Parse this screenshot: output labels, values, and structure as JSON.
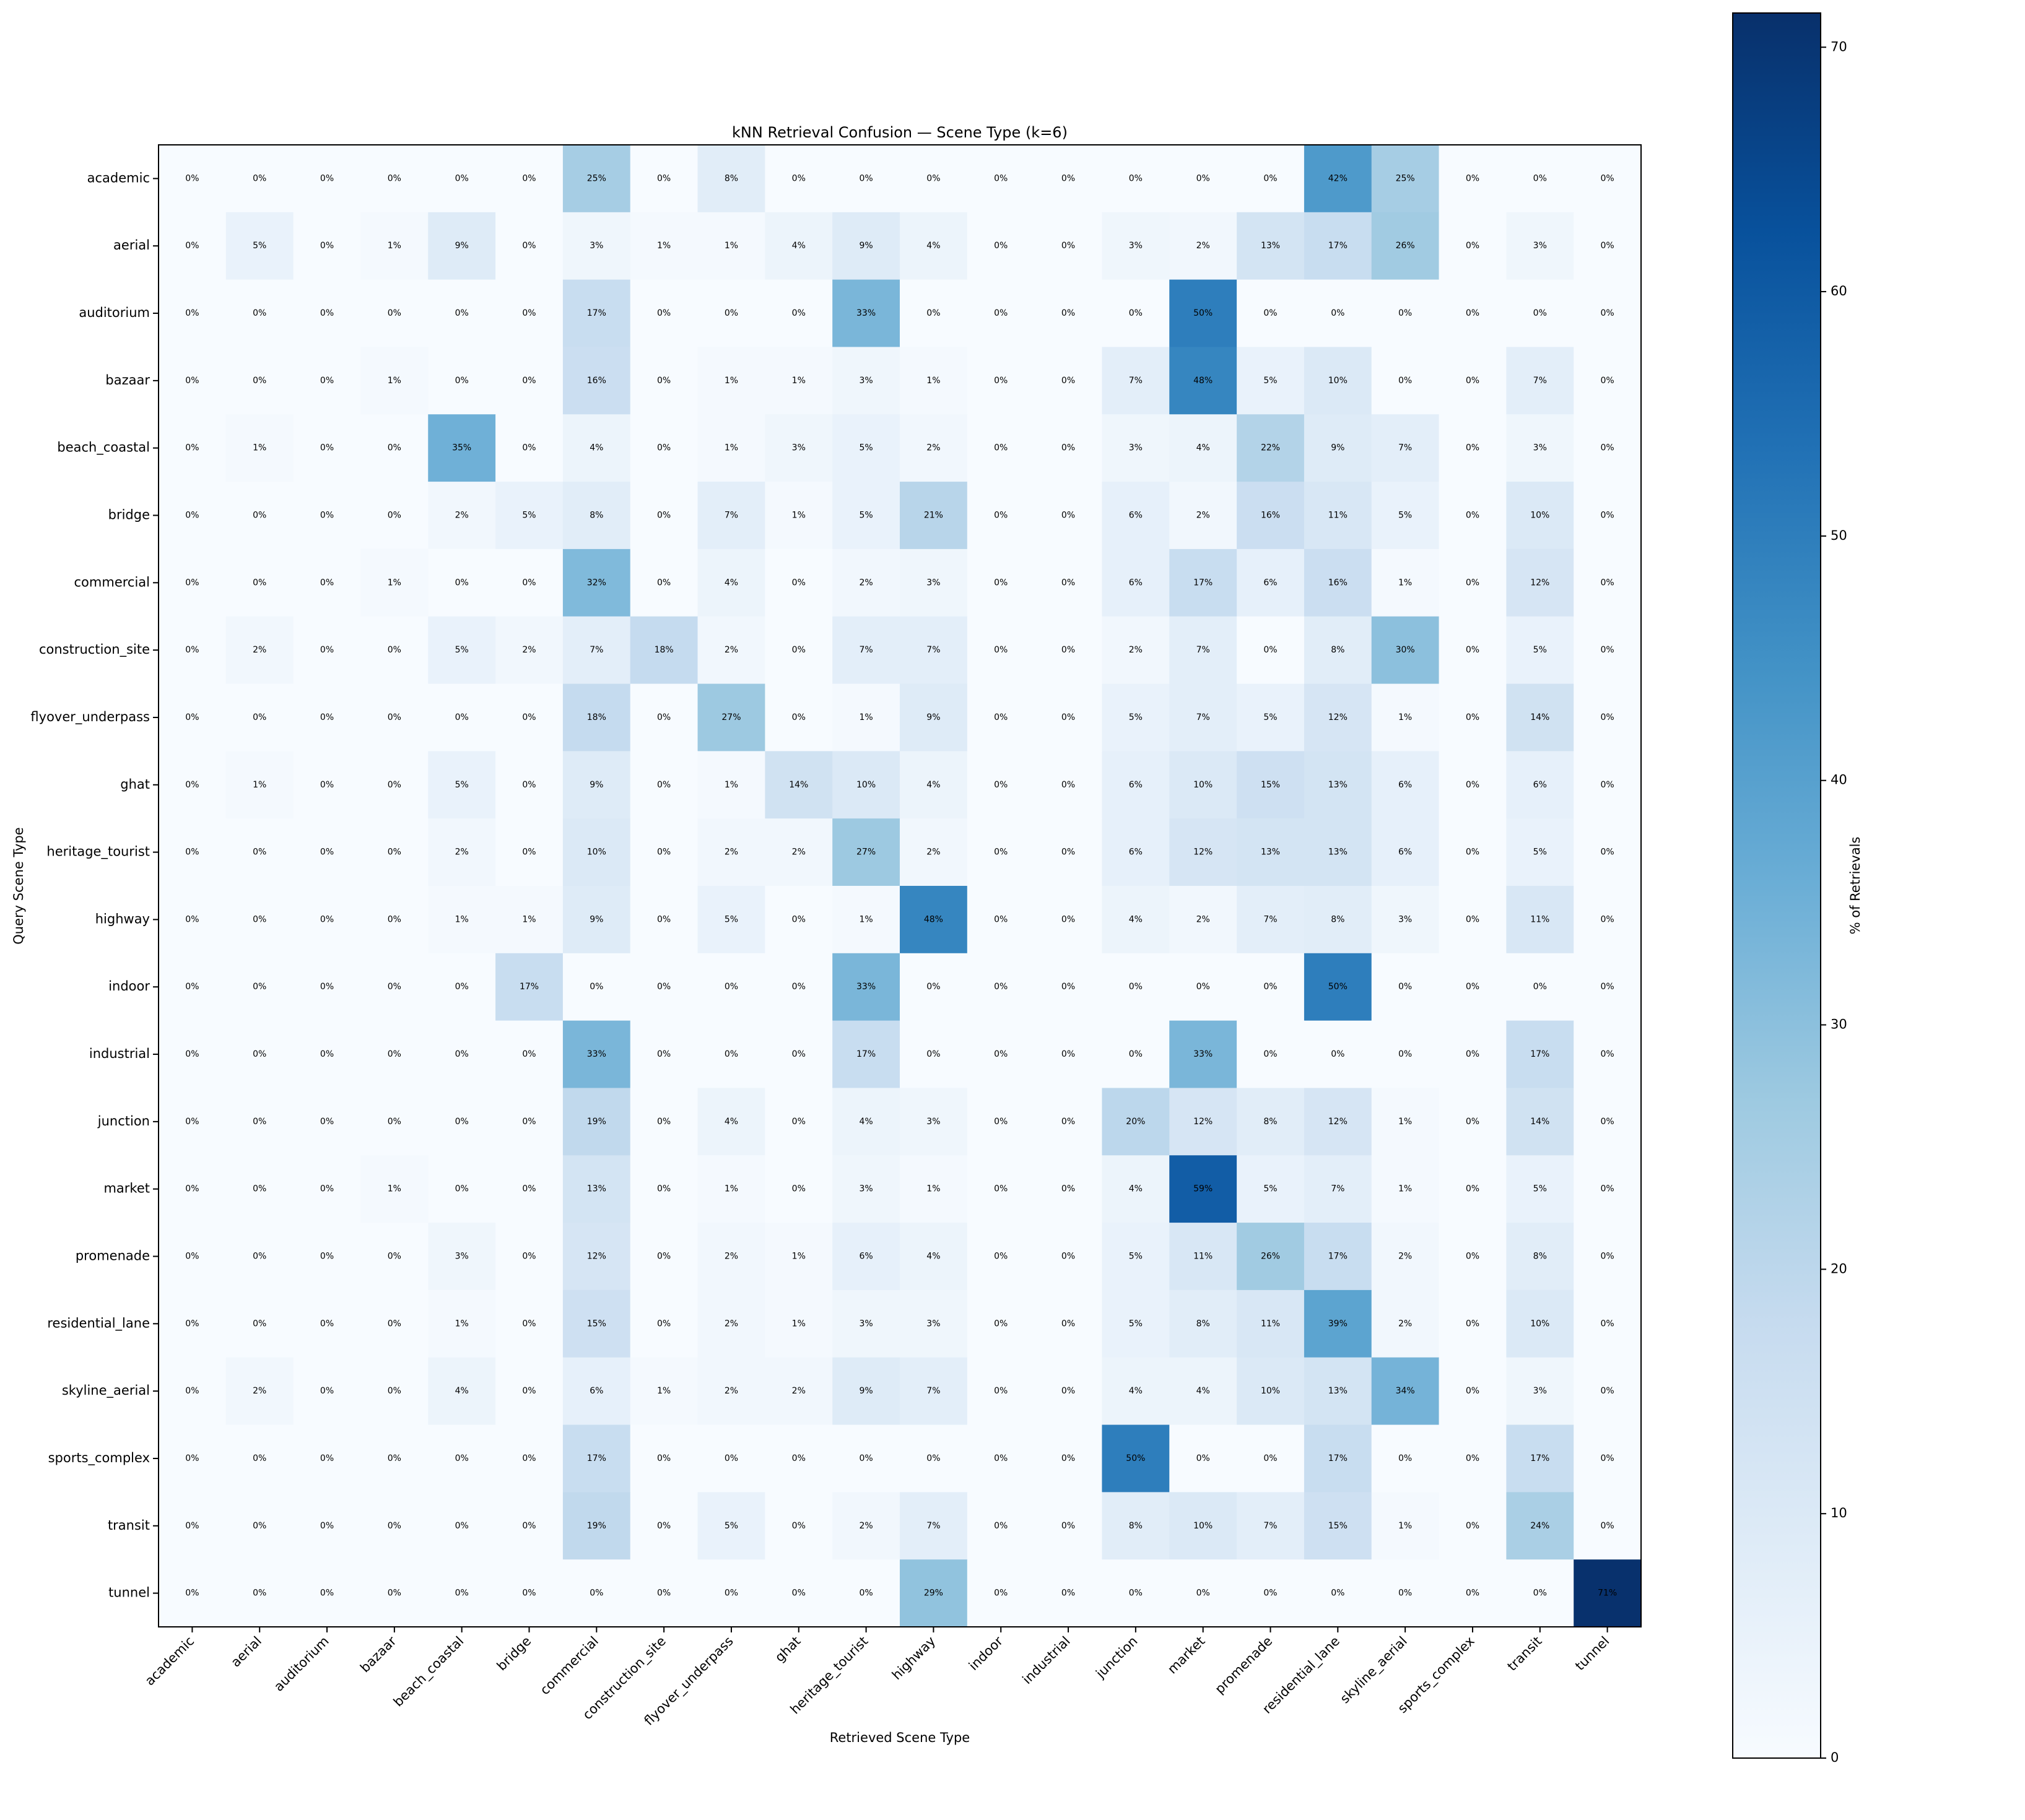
{
  "chart_data": {
    "type": "heatmap",
    "title": "kNN Retrieval Confusion — Scene Type (k=6)",
    "xlabel": "Retrieved Scene Type",
    "ylabel": "Query Scene Type",
    "categories": [
      "academic",
      "aerial",
      "auditorium",
      "bazaar",
      "beach_coastal",
      "bridge",
      "commercial",
      "construction_site",
      "flyover_underpass",
      "ghat",
      "heritage_tourist",
      "highway",
      "indoor",
      "industrial",
      "junction",
      "market",
      "promenade",
      "residential_lane",
      "skyline_aerial",
      "sports_complex",
      "transit",
      "tunnel"
    ],
    "values": [
      [
        0,
        0,
        0,
        0,
        0,
        0,
        25,
        0,
        8,
        0,
        0,
        0,
        0,
        0,
        0,
        0,
        0,
        42,
        25,
        0,
        0,
        0
      ],
      [
        0,
        5,
        0,
        1,
        9,
        0,
        3,
        1,
        1,
        4,
        9,
        4,
        0,
        0,
        3,
        2,
        13,
        17,
        26,
        0,
        3,
        0
      ],
      [
        0,
        0,
        0,
        0,
        0,
        0,
        17,
        0,
        0,
        0,
        33,
        0,
        0,
        0,
        0,
        50,
        0,
        0,
        0,
        0,
        0,
        0
      ],
      [
        0,
        0,
        0,
        1,
        0,
        0,
        16,
        0,
        1,
        1,
        3,
        1,
        0,
        0,
        7,
        48,
        5,
        10,
        0,
        0,
        7,
        0
      ],
      [
        0,
        1,
        0,
        0,
        35,
        0,
        4,
        0,
        1,
        3,
        5,
        2,
        0,
        0,
        3,
        4,
        22,
        9,
        7,
        0,
        3,
        0
      ],
      [
        0,
        0,
        0,
        0,
        2,
        5,
        8,
        0,
        7,
        1,
        5,
        21,
        0,
        0,
        6,
        2,
        16,
        11,
        5,
        0,
        10,
        0
      ],
      [
        0,
        0,
        0,
        1,
        0,
        0,
        32,
        0,
        4,
        0,
        2,
        3,
        0,
        0,
        6,
        17,
        6,
        16,
        1,
        0,
        12,
        0
      ],
      [
        0,
        2,
        0,
        0,
        5,
        2,
        7,
        18,
        2,
        0,
        7,
        7,
        0,
        0,
        2,
        7,
        0,
        8,
        30,
        0,
        5,
        0
      ],
      [
        0,
        0,
        0,
        0,
        0,
        0,
        18,
        0,
        27,
        0,
        1,
        9,
        0,
        0,
        5,
        7,
        5,
        12,
        1,
        0,
        14,
        0
      ],
      [
        0,
        1,
        0,
        0,
        5,
        0,
        9,
        0,
        1,
        14,
        10,
        4,
        0,
        0,
        6,
        10,
        15,
        13,
        6,
        0,
        6,
        0
      ],
      [
        0,
        0,
        0,
        0,
        2,
        0,
        10,
        0,
        2,
        2,
        27,
        2,
        0,
        0,
        6,
        12,
        13,
        13,
        6,
        0,
        5,
        0
      ],
      [
        0,
        0,
        0,
        0,
        1,
        1,
        9,
        0,
        5,
        0,
        1,
        48,
        0,
        0,
        4,
        2,
        7,
        8,
        3,
        0,
        11,
        0
      ],
      [
        0,
        0,
        0,
        0,
        0,
        17,
        0,
        0,
        0,
        0,
        33,
        0,
        0,
        0,
        0,
        0,
        0,
        50,
        0,
        0,
        0,
        0
      ],
      [
        0,
        0,
        0,
        0,
        0,
        0,
        33,
        0,
        0,
        0,
        17,
        0,
        0,
        0,
        0,
        33,
        0,
        0,
        0,
        0,
        17,
        0
      ],
      [
        0,
        0,
        0,
        0,
        0,
        0,
        19,
        0,
        4,
        0,
        4,
        3,
        0,
        0,
        20,
        12,
        8,
        12,
        1,
        0,
        14,
        0
      ],
      [
        0,
        0,
        0,
        1,
        0,
        0,
        13,
        0,
        1,
        0,
        3,
        1,
        0,
        0,
        4,
        59,
        5,
        7,
        1,
        0,
        5,
        0
      ],
      [
        0,
        0,
        0,
        0,
        3,
        0,
        12,
        0,
        2,
        1,
        6,
        4,
        0,
        0,
        5,
        11,
        26,
        17,
        2,
        0,
        8,
        0
      ],
      [
        0,
        0,
        0,
        0,
        1,
        0,
        15,
        0,
        2,
        1,
        3,
        3,
        0,
        0,
        5,
        8,
        11,
        39,
        2,
        0,
        10,
        0
      ],
      [
        0,
        2,
        0,
        0,
        4,
        0,
        6,
        1,
        2,
        2,
        9,
        7,
        0,
        0,
        4,
        4,
        10,
        13,
        34,
        0,
        3,
        0
      ],
      [
        0,
        0,
        0,
        0,
        0,
        0,
        17,
        0,
        0,
        0,
        0,
        0,
        0,
        0,
        50,
        0,
        0,
        17,
        0,
        0,
        17,
        0
      ],
      [
        0,
        0,
        0,
        0,
        0,
        0,
        19,
        0,
        5,
        0,
        2,
        7,
        0,
        0,
        8,
        10,
        7,
        15,
        1,
        0,
        24,
        0
      ],
      [
        0,
        0,
        0,
        0,
        0,
        0,
        0,
        0,
        0,
        0,
        0,
        29,
        0,
        0,
        0,
        0,
        0,
        0,
        0,
        0,
        0,
        71
      ]
    ],
    "value_labels": [
      [
        "0%",
        "0%",
        "0%",
        "0%",
        "0%",
        "0%",
        "25%",
        "0%",
        "8%",
        "0%",
        "0%",
        "0%",
        "0%",
        "0%",
        "0%",
        "0%",
        "0%",
        "42%",
        "25%",
        "0%",
        "0%",
        "0%"
      ],
      [
        "0%",
        "5%",
        "0%",
        "1%",
        "9%",
        "0%",
        "3%",
        "1%",
        "1%",
        "4%",
        "9%",
        "4%",
        "0%",
        "0%",
        "3%",
        "2%",
        "13%",
        "17%",
        "26%",
        "0%",
        "3%",
        "0%"
      ],
      [
        "0%",
        "0%",
        "0%",
        "0%",
        "0%",
        "0%",
        "17%",
        "0%",
        "0%",
        "0%",
        "33%",
        "0%",
        "0%",
        "0%",
        "0%",
        "50%",
        "0%",
        "0%",
        "0%",
        "0%",
        "0%",
        "0%"
      ],
      [
        "0%",
        "0%",
        "0%",
        "1%",
        "0%",
        "0%",
        "16%",
        "0%",
        "1%",
        "1%",
        "3%",
        "1%",
        "0%",
        "0%",
        "7%",
        "48%",
        "5%",
        "10%",
        "0%",
        "0%",
        "7%",
        "0%"
      ],
      [
        "0%",
        "1%",
        "0%",
        "0%",
        "35%",
        "0%",
        "4%",
        "0%",
        "1%",
        "3%",
        "5%",
        "2%",
        "0%",
        "0%",
        "3%",
        "4%",
        "22%",
        "9%",
        "7%",
        "0%",
        "3%",
        "0%"
      ],
      [
        "0%",
        "0%",
        "0%",
        "0%",
        "2%",
        "5%",
        "8%",
        "0%",
        "7%",
        "1%",
        "5%",
        "21%",
        "0%",
        "0%",
        "6%",
        "2%",
        "16%",
        "11%",
        "5%",
        "0%",
        "10%",
        "0%"
      ],
      [
        "0%",
        "0%",
        "0%",
        "1%",
        "0%",
        "0%",
        "32%",
        "0%",
        "4%",
        "0%",
        "2%",
        "3%",
        "0%",
        "0%",
        "6%",
        "17%",
        "6%",
        "16%",
        "1%",
        "0%",
        "12%",
        "0%"
      ],
      [
        "0%",
        "2%",
        "0%",
        "0%",
        "5%",
        "2%",
        "7%",
        "18%",
        "2%",
        "0%",
        "7%",
        "7%",
        "0%",
        "0%",
        "2%",
        "7%",
        "0%",
        "8%",
        "30%",
        "0%",
        "5%",
        "0%"
      ],
      [
        "0%",
        "0%",
        "0%",
        "0%",
        "0%",
        "0%",
        "18%",
        "0%",
        "27%",
        "0%",
        "1%",
        "9%",
        "0%",
        "0%",
        "5%",
        "7%",
        "5%",
        "12%",
        "1%",
        "0%",
        "14%",
        "0%"
      ],
      [
        "0%",
        "1%",
        "0%",
        "0%",
        "5%",
        "0%",
        "9%",
        "0%",
        "1%",
        "14%",
        "10%",
        "4%",
        "0%",
        "0%",
        "6%",
        "10%",
        "15%",
        "13%",
        "6%",
        "0%",
        "6%",
        "0%"
      ],
      [
        "0%",
        "0%",
        "0%",
        "0%",
        "2%",
        "0%",
        "10%",
        "0%",
        "2%",
        "2%",
        "27%",
        "2%",
        "0%",
        "0%",
        "6%",
        "12%",
        "13%",
        "13%",
        "6%",
        "0%",
        "5%",
        "0%"
      ],
      [
        "0%",
        "0%",
        "0%",
        "0%",
        "1%",
        "1%",
        "9%",
        "0%",
        "5%",
        "0%",
        "1%",
        "48%",
        "0%",
        "0%",
        "4%",
        "2%",
        "7%",
        "8%",
        "3%",
        "0%",
        "11%",
        "0%"
      ],
      [
        "0%",
        "0%",
        "0%",
        "0%",
        "0%",
        "17%",
        "0%",
        "0%",
        "0%",
        "0%",
        "33%",
        "0%",
        "0%",
        "0%",
        "0%",
        "0%",
        "0%",
        "50%",
        "0%",
        "0%",
        "0%",
        "0%"
      ],
      [
        "0%",
        "0%",
        "0%",
        "0%",
        "0%",
        "0%",
        "33%",
        "0%",
        "0%",
        "0%",
        "17%",
        "0%",
        "0%",
        "0%",
        "0%",
        "33%",
        "0%",
        "0%",
        "0%",
        "0%",
        "17%",
        "0%"
      ],
      [
        "0%",
        "0%",
        "0%",
        "0%",
        "0%",
        "0%",
        "19%",
        "0%",
        "4%",
        "0%",
        "4%",
        "3%",
        "0%",
        "0%",
        "20%",
        "12%",
        "8%",
        "12%",
        "1%",
        "0%",
        "14%",
        "0%"
      ],
      [
        "0%",
        "0%",
        "0%",
        "1%",
        "0%",
        "0%",
        "13%",
        "0%",
        "1%",
        "0%",
        "3%",
        "1%",
        "0%",
        "0%",
        "4%",
        "59%",
        "5%",
        "7%",
        "1%",
        "0%",
        "5%",
        "0%"
      ],
      [
        "0%",
        "0%",
        "0%",
        "0%",
        "3%",
        "0%",
        "12%",
        "0%",
        "2%",
        "1%",
        "6%",
        "4%",
        "0%",
        "0%",
        "5%",
        "11%",
        "26%",
        "17%",
        "2%",
        "0%",
        "8%",
        "0%"
      ],
      [
        "0%",
        "0%",
        "0%",
        "0%",
        "1%",
        "0%",
        "15%",
        "0%",
        "2%",
        "1%",
        "3%",
        "3%",
        "0%",
        "0%",
        "5%",
        "8%",
        "11%",
        "39%",
        "2%",
        "0%",
        "10%",
        "0%"
      ],
      [
        "0%",
        "2%",
        "0%",
        "0%",
        "4%",
        "0%",
        "6%",
        "1%",
        "2%",
        "2%",
        "9%",
        "7%",
        "0%",
        "0%",
        "4%",
        "4%",
        "10%",
        "13%",
        "34%",
        "0%",
        "3%",
        "0%"
      ],
      [
        "0%",
        "0%",
        "0%",
        "0%",
        "0%",
        "0%",
        "17%",
        "0%",
        "0%",
        "0%",
        "0%",
        "0%",
        "0%",
        "0%",
        "50%",
        "0%",
        "0%",
        "17%",
        "0%",
        "0%",
        "17%",
        "0%"
      ],
      [
        "0%",
        "0%",
        "0%",
        "0%",
        "0%",
        "0%",
        "19%",
        "0%",
        "5%",
        "0%",
        "2%",
        "7%",
        "0%",
        "0%",
        "8%",
        "10%",
        "7%",
        "15%",
        "1%",
        "0%",
        "24%",
        "0%"
      ],
      [
        "0%",
        "0%",
        "0%",
        "0%",
        "0%",
        "0%",
        "0%",
        "0%",
        "0%",
        "0%",
        "0%",
        "29%",
        "0%",
        "0%",
        "0%",
        "0%",
        "0%",
        "0%",
        "0%",
        "0%",
        "0%",
        "71%"
      ]
    ],
    "colormap": "Blues",
    "colorbar": {
      "label": "% of Retrievals",
      "lim": [
        0,
        71.4
      ],
      "ticks": [
        0,
        10,
        20,
        30,
        40,
        50,
        60,
        70
      ]
    }
  }
}
